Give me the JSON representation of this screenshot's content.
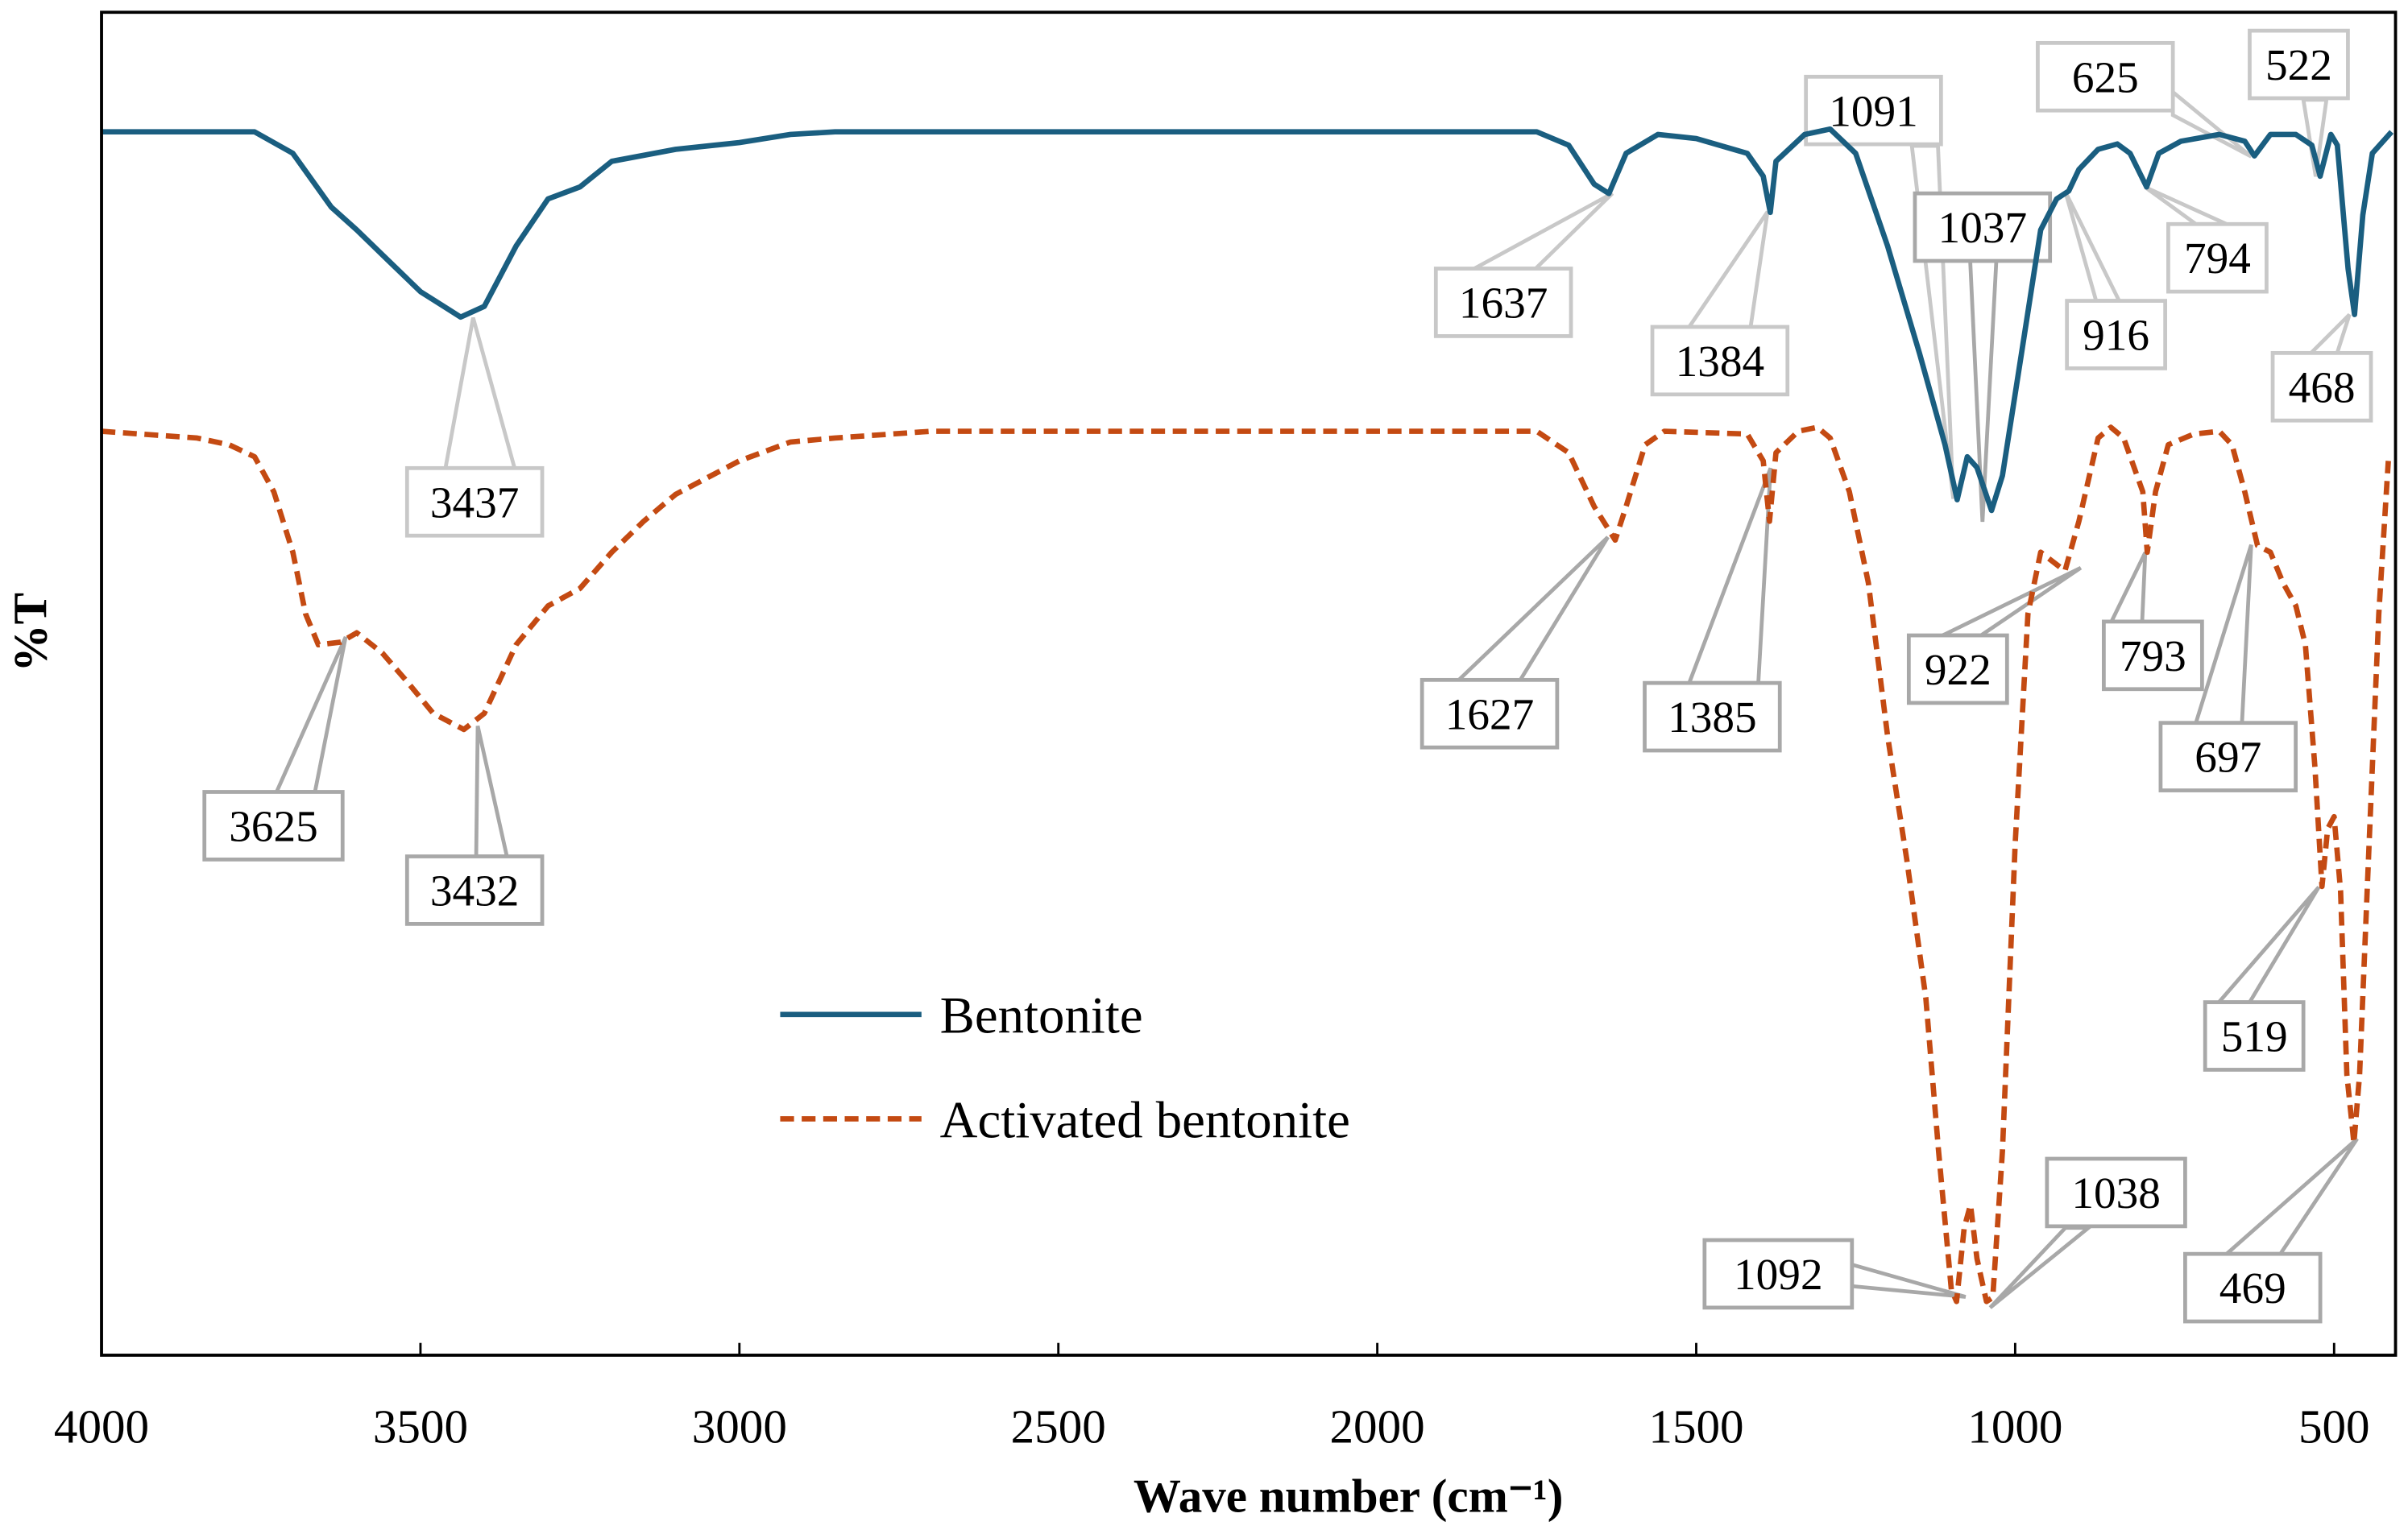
{
  "chart_data": {
    "type": "line",
    "title": "",
    "xlabel": "Wave number  (cm⁻¹)",
    "ylabel": "%T",
    "xlim": [
      4000,
      400
    ],
    "ylim": [
      0,
      100
    ],
    "x_ticks": [
      4000,
      3500,
      3000,
      2500,
      2000,
      1500,
      1000,
      500
    ],
    "grid": false,
    "legend_position": "center",
    "series": [
      {
        "name": "Bentonite",
        "color": "#1a5e80",
        "style": "solid",
        "x": [
          4000,
          3760,
          3700,
          3640,
          3600,
          3550,
          3500,
          3437,
          3400,
          3350,
          3300,
          3250,
          3200,
          3100,
          3000,
          2920,
          2850,
          2000,
          1750,
          1700,
          1660,
          1637,
          1610,
          1560,
          1500,
          1420,
          1395,
          1384,
          1375,
          1330,
          1290,
          1250,
          1200,
          1150,
          1110,
          1091,
          1075,
          1060,
          1037,
          1020,
          990,
          960,
          935,
          916,
          900,
          870,
          840,
          820,
          794,
          775,
          740,
          680,
          640,
          625,
          600,
          560,
          535,
          522,
          505,
          495,
          478,
          468,
          455,
          440,
          410
        ],
        "y": [
          91.1,
          91.1,
          89.5,
          85.5,
          83.8,
          81.5,
          79.2,
          77.3,
          78.1,
          82.6,
          86.1,
          87.0,
          88.9,
          89.8,
          90.3,
          90.9,
          91.1,
          91.1,
          91.1,
          90.1,
          87.2,
          86.5,
          89.5,
          90.9,
          90.6,
          89.5,
          87.8,
          85.1,
          88.9,
          90.9,
          91.3,
          89.5,
          82.6,
          74.6,
          67.8,
          63.7,
          66.9,
          66.1,
          62.9,
          65.5,
          74.6,
          83.8,
          86.1,
          86.7,
          88.3,
          89.8,
          90.2,
          89.5,
          87.0,
          89.5,
          90.4,
          90.9,
          90.4,
          89.3,
          90.9,
          90.9,
          90.1,
          87.8,
          90.9,
          90.1,
          80.9,
          77.5,
          84.9,
          89.5,
          91.1
        ]
      },
      {
        "name": "Activated bentonite",
        "color": "#c44a12",
        "style": "dashed",
        "x": [
          4000,
          3850,
          3800,
          3760,
          3730,
          3700,
          3680,
          3660,
          3625,
          3600,
          3560,
          3520,
          3480,
          3432,
          3400,
          3350,
          3300,
          3250,
          3200,
          3150,
          3100,
          3000,
          2920,
          2850,
          2700,
          1750,
          1700,
          1660,
          1627,
          1610,
          1580,
          1550,
          1420,
          1395,
          1385,
          1375,
          1340,
          1310,
          1290,
          1260,
          1230,
          1200,
          1170,
          1140,
          1120,
          1100,
          1092,
          1080,
          1070,
          1060,
          1045,
          1035,
          1020,
          1000,
          980,
          960,
          922,
          900,
          870,
          850,
          830,
          800,
          793,
          780,
          760,
          720,
          680,
          660,
          640,
          620,
          600,
          580,
          560,
          545,
          530,
          519,
          510,
          500,
          490,
          480,
          469,
          460,
          445,
          430,
          415
        ],
        "y": [
          68.8,
          68.3,
          67.8,
          66.9,
          64.3,
          59.8,
          55.2,
          52.9,
          53.1,
          53.8,
          52.3,
          50.1,
          47.8,
          46.6,
          47.8,
          52.9,
          55.8,
          57.1,
          59.8,
          62.1,
          64.1,
          66.6,
          68.0,
          68.3,
          68.8,
          68.8,
          67.2,
          63.2,
          60.7,
          63.2,
          67.8,
          68.8,
          68.6,
          66.6,
          62.1,
          67.2,
          68.8,
          69.1,
          68.3,
          64.3,
          57.5,
          46.1,
          36.9,
          26.6,
          15.2,
          4.9,
          4.0,
          9.5,
          11.2,
          7.2,
          4.0,
          4.3,
          15.2,
          38.1,
          55.2,
          59.8,
          58.4,
          62.1,
          68.3,
          69.1,
          68.3,
          64.3,
          59.8,
          64.3,
          67.8,
          68.6,
          68.8,
          67.8,
          64.3,
          60.3,
          59.8,
          57.5,
          55.8,
          52.9,
          43.8,
          34.9,
          39.2,
          40.1,
          34.6,
          20.9,
          15.8,
          20.9,
          38.1,
          55.2,
          66.6
        ]
      }
    ],
    "annotations": [
      {
        "series": "Bentonite",
        "text": "3437"
      },
      {
        "series": "Bentonite",
        "text": "1637"
      },
      {
        "series": "Bentonite",
        "text": "1384"
      },
      {
        "series": "Bentonite",
        "text": "1091"
      },
      {
        "series": "Bentonite",
        "text": "1037"
      },
      {
        "series": "Bentonite",
        "text": "916"
      },
      {
        "series": "Bentonite",
        "text": "794"
      },
      {
        "series": "Bentonite",
        "text": "625"
      },
      {
        "series": "Bentonite",
        "text": "522"
      },
      {
        "series": "Bentonite",
        "text": "468"
      },
      {
        "series": "Activated bentonite",
        "text": "3625"
      },
      {
        "series": "Activated bentonite",
        "text": "3432"
      },
      {
        "series": "Activated bentonite",
        "text": "1627"
      },
      {
        "series": "Activated bentonite",
        "text": "1385"
      },
      {
        "series": "Activated bentonite",
        "text": "922"
      },
      {
        "series": "Activated bentonite",
        "text": "793"
      },
      {
        "series": "Activated bentonite",
        "text": "697"
      },
      {
        "series": "Activated bentonite",
        "text": "519"
      },
      {
        "series": "Activated bentonite",
        "text": "469"
      },
      {
        "series": "Activated bentonite",
        "text": "1092"
      },
      {
        "series": "Activated bentonite",
        "text": "1038"
      }
    ]
  }
}
